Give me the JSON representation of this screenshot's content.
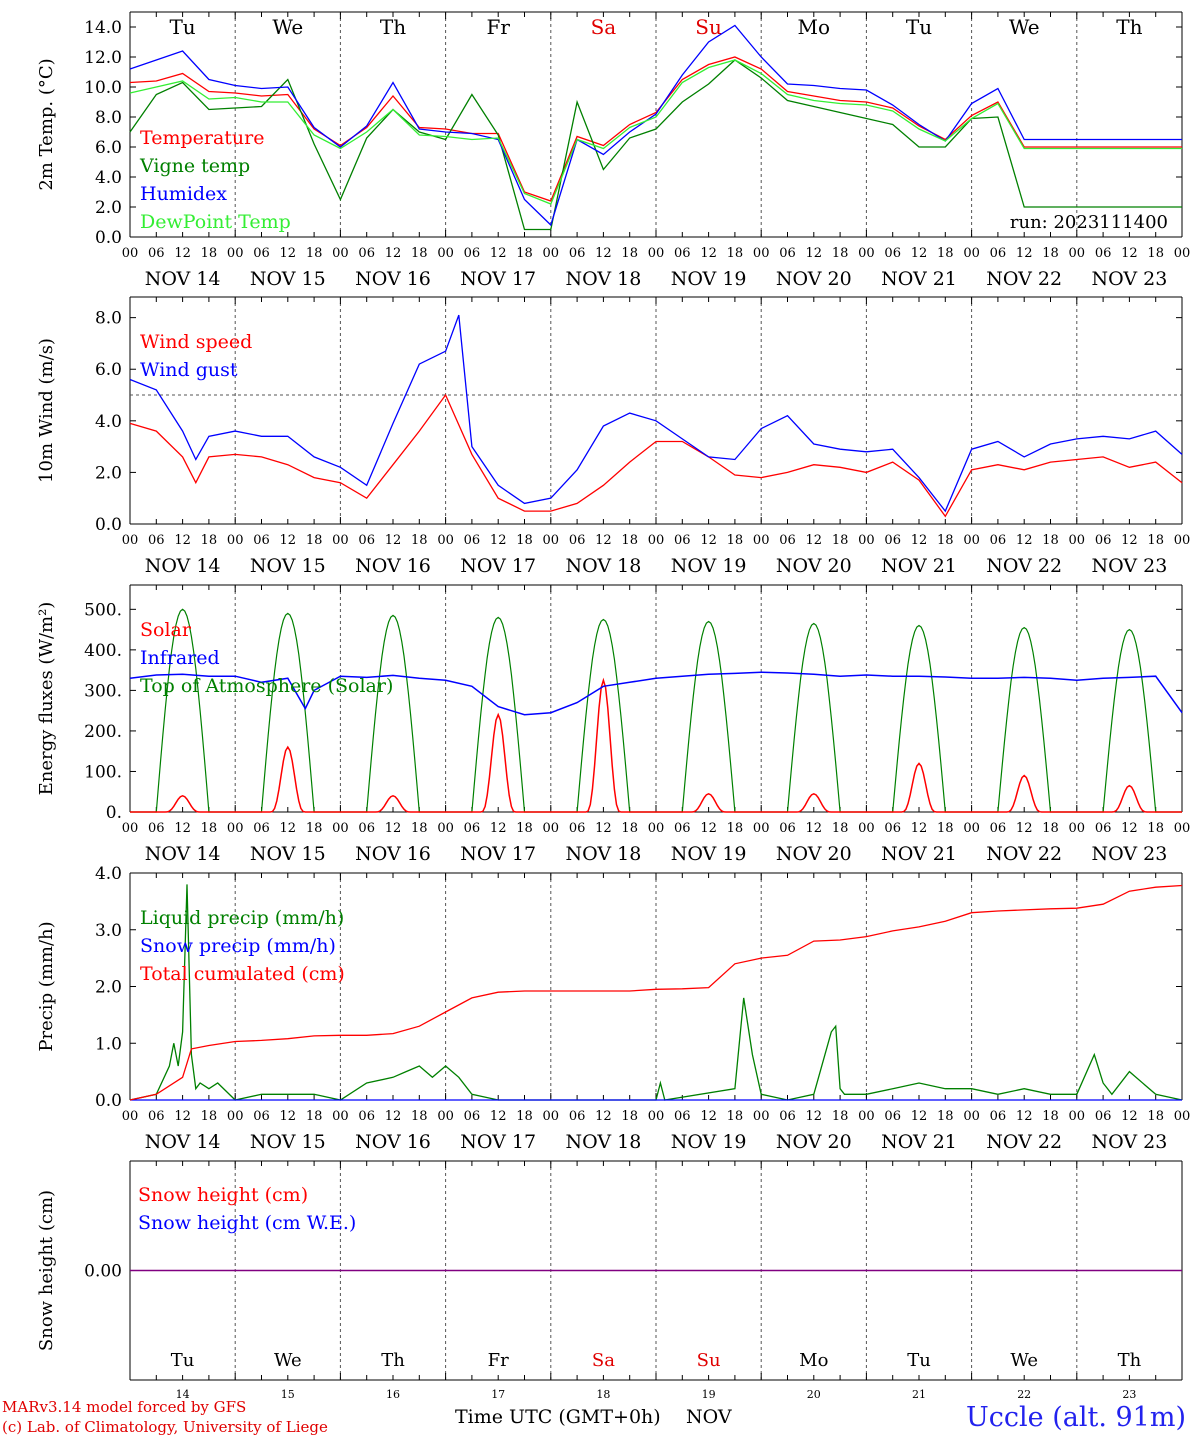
{
  "days": {
    "abbr": [
      "Tu",
      "We",
      "Th",
      "Fr",
      "Sa",
      "Su",
      "Mo",
      "Tu",
      "We",
      "Th"
    ],
    "weekend_color": "#e00000",
    "dates": [
      "NOV 14",
      "NOV 15",
      "NOV 16",
      "NOV 17",
      "NOV 18",
      "NOV 19",
      "NOV 20",
      "NOV 21",
      "NOV 22",
      "NOV 23"
    ],
    "day_numbers": [
      "14",
      "15",
      "16",
      "17",
      "18",
      "19",
      "20",
      "21",
      "22",
      "23"
    ],
    "hour_ticks": [
      "00",
      "06",
      "12",
      "18"
    ],
    "final_tick": "00"
  },
  "footer": {
    "credit_line1": "MARv3.14 model forced by GFS",
    "credit_line2": "(c) Lab. of Climatology, University of Liege",
    "xaxis_title": "Time UTC (GMT+0h)",
    "xaxis_month": "NOV",
    "location": "Uccle (alt. 91m)"
  },
  "chart_data": [
    {
      "type": "line",
      "ylabel": "2m Temp. (°C)",
      "ylim": [
        0,
        15
      ],
      "yticks": [
        "0.0",
        "2.0",
        "4.0",
        "6.0",
        "8.0",
        "10.0",
        "12.0",
        "14.0"
      ],
      "annotation": "run: 2023111400",
      "x_unit": "hours since NOV 14 00 UTC",
      "series": [
        {
          "name": "Temperature",
          "color": "#ff0000",
          "x": [
            0,
            6,
            12,
            18,
            24,
            30,
            36,
            42,
            48,
            54,
            60,
            66,
            72,
            78,
            84,
            90,
            96,
            102,
            108,
            114,
            120,
            126,
            132,
            138,
            144,
            150,
            156,
            162,
            168,
            174,
            180,
            186,
            192,
            198,
            204,
            210,
            216,
            222,
            228,
            234,
            240
          ],
          "values": [
            10.3,
            10.4,
            10.9,
            9.7,
            9.6,
            9.4,
            9.5,
            7.2,
            6.1,
            7.3,
            9.4,
            7.3,
            7.2,
            6.9,
            6.9,
            3.0,
            2.4,
            6.7,
            6.1,
            7.5,
            8.3,
            10.5,
            11.5,
            12.0,
            11.2,
            9.7,
            9.4,
            9.1,
            9.0,
            8.6,
            7.4,
            6.5,
            8.1,
            9.0,
            6.0,
            6.0,
            6.0,
            6.0,
            6.0,
            6.0,
            6.0
          ]
        },
        {
          "name": "Vigne temp",
          "color": "#008000",
          "x": [
            0,
            6,
            12,
            18,
            24,
            30,
            36,
            42,
            48,
            54,
            60,
            66,
            72,
            78,
            84,
            90,
            96,
            102,
            108,
            114,
            120,
            126,
            132,
            138,
            144,
            150,
            156,
            162,
            168,
            174,
            180,
            186,
            192,
            198,
            204,
            210,
            216,
            222,
            228,
            234,
            240
          ],
          "values": [
            7.0,
            9.5,
            10.3,
            8.5,
            8.6,
            8.7,
            10.5,
            6.2,
            2.5,
            6.6,
            8.5,
            7.0,
            6.5,
            9.5,
            6.8,
            0.5,
            0.5,
            9.0,
            4.5,
            6.6,
            7.2,
            9.0,
            10.2,
            11.8,
            10.6,
            9.1,
            8.7,
            8.3,
            7.9,
            7.5,
            6.0,
            6.0,
            7.9,
            8.0,
            2.0,
            2.0,
            2.0,
            2.0,
            2.0,
            2.0,
            2.0
          ]
        },
        {
          "name": "Humidex",
          "color": "#0000ff",
          "x": [
            0,
            6,
            12,
            18,
            24,
            30,
            36,
            42,
            48,
            54,
            60,
            66,
            72,
            78,
            84,
            90,
            96,
            102,
            108,
            114,
            120,
            126,
            132,
            138,
            144,
            150,
            156,
            162,
            168,
            174,
            180,
            186,
            192,
            198,
            204,
            210,
            216,
            222,
            228,
            234,
            240
          ],
          "values": [
            11.2,
            11.8,
            12.4,
            10.5,
            10.1,
            9.9,
            10.0,
            7.3,
            6.0,
            7.4,
            10.3,
            7.2,
            7.0,
            6.9,
            6.5,
            2.5,
            0.8,
            6.5,
            5.5,
            7.0,
            8.2,
            10.8,
            13.0,
            14.1,
            12.0,
            10.2,
            10.1,
            9.9,
            9.8,
            8.8,
            7.5,
            6.4,
            8.9,
            9.9,
            6.5,
            6.5,
            6.5,
            6.5,
            6.5,
            6.5,
            6.5
          ]
        },
        {
          "name": "DewPoint Temp",
          "color": "#33ee33",
          "x": [
            0,
            6,
            12,
            18,
            24,
            30,
            36,
            42,
            48,
            54,
            60,
            66,
            72,
            78,
            84,
            90,
            96,
            102,
            108,
            114,
            120,
            126,
            132,
            138,
            144,
            150,
            156,
            162,
            168,
            174,
            180,
            186,
            192,
            198,
            204,
            210,
            216,
            222,
            228,
            234,
            240
          ],
          "values": [
            9.6,
            10.0,
            10.4,
            9.2,
            9.3,
            9.0,
            9.0,
            6.8,
            5.9,
            7.0,
            8.5,
            6.8,
            6.7,
            6.5,
            6.6,
            2.9,
            2.2,
            6.5,
            5.9,
            7.3,
            8.0,
            10.3,
            11.3,
            11.8,
            10.9,
            9.5,
            9.1,
            8.9,
            8.8,
            8.4,
            7.2,
            6.4,
            7.9,
            8.9,
            5.9,
            5.9,
            5.9,
            5.9,
            5.9,
            5.9,
            5.9
          ]
        }
      ]
    },
    {
      "type": "line",
      "ylabel": "10m Wind (m/s)",
      "ylim": [
        0,
        8.8
      ],
      "yticks": [
        "0.0",
        "2.0",
        "4.0",
        "6.0",
        "8.0"
      ],
      "reference_line": 5.0,
      "x_unit": "hours since NOV 14 00 UTC",
      "series": [
        {
          "name": "Wind speed",
          "color": "#ff0000",
          "x": [
            0,
            6,
            12,
            15,
            18,
            24,
            30,
            36,
            42,
            48,
            54,
            60,
            66,
            72,
            78,
            84,
            90,
            96,
            102,
            108,
            114,
            120,
            126,
            132,
            138,
            144,
            150,
            156,
            162,
            168,
            174,
            180,
            186,
            192,
            198,
            204,
            210,
            216,
            222,
            228,
            234,
            240
          ],
          "values": [
            3.9,
            3.6,
            2.6,
            1.6,
            2.6,
            2.7,
            2.6,
            2.3,
            1.8,
            1.6,
            1.0,
            2.3,
            3.6,
            5.0,
            2.7,
            1.0,
            0.5,
            0.5,
            0.8,
            1.5,
            2.4,
            3.2,
            3.2,
            2.6,
            1.9,
            1.8,
            2.0,
            2.3,
            2.2,
            2.0,
            2.4,
            1.7,
            0.3,
            2.1,
            2.3,
            2.1,
            2.4,
            2.5,
            2.6,
            2.2,
            2.4,
            1.6
          ]
        },
        {
          "name": "Wind gust",
          "color": "#0000ff",
          "x": [
            0,
            6,
            12,
            15,
            18,
            24,
            30,
            36,
            42,
            48,
            54,
            60,
            66,
            72,
            75,
            78,
            84,
            90,
            96,
            102,
            108,
            114,
            120,
            126,
            132,
            138,
            144,
            150,
            156,
            162,
            168,
            174,
            180,
            186,
            192,
            198,
            204,
            210,
            216,
            222,
            228,
            234,
            240
          ],
          "values": [
            5.6,
            5.2,
            3.6,
            2.5,
            3.4,
            3.6,
            3.4,
            3.4,
            2.6,
            2.2,
            1.5,
            3.9,
            6.2,
            6.7,
            8.1,
            3.0,
            1.5,
            0.8,
            1.0,
            2.1,
            3.8,
            4.3,
            4.0,
            3.3,
            2.6,
            2.5,
            3.7,
            4.2,
            3.1,
            2.9,
            2.8,
            2.9,
            1.8,
            0.5,
            2.9,
            3.2,
            2.6,
            3.1,
            3.3,
            3.4,
            3.3,
            3.6,
            2.7
          ]
        }
      ]
    },
    {
      "type": "line",
      "ylabel": "Energy fluxes (W/m²)",
      "ylim": [
        0,
        560
      ],
      "yticks": [
        "0.",
        "100.",
        "200.",
        "300.",
        "400.",
        "500."
      ],
      "x_unit": "hours since NOV 14 00 UTC",
      "series": [
        {
          "name": "Solar",
          "color": "#ff0000",
          "day_peaks": [
            40,
            160,
            40,
            240,
            325,
            45,
            45,
            120,
            90,
            65
          ]
        },
        {
          "name": "Infrared",
          "color": "#0000ff",
          "x": [
            0,
            6,
            12,
            18,
            24,
            30,
            36,
            40,
            42,
            48,
            54,
            60,
            66,
            72,
            78,
            84,
            90,
            96,
            102,
            108,
            114,
            120,
            126,
            132,
            138,
            144,
            150,
            156,
            162,
            168,
            174,
            180,
            186,
            192,
            198,
            204,
            210,
            216,
            222,
            228,
            234,
            240
          ],
          "values": [
            330,
            338,
            340,
            335,
            335,
            320,
            330,
            255,
            300,
            335,
            332,
            337,
            330,
            325,
            310,
            260,
            240,
            245,
            270,
            310,
            320,
            330,
            335,
            340,
            342,
            345,
            343,
            340,
            335,
            338,
            335,
            335,
            333,
            330,
            330,
            332,
            330,
            325,
            330,
            332,
            335,
            245
          ]
        },
        {
          "name": "Top of Atmosphere (Solar)",
          "color": "#008000",
          "day_peaks": [
            500,
            490,
            485,
            480,
            475,
            470,
            465,
            460,
            455,
            450
          ]
        }
      ]
    },
    {
      "type": "line",
      "ylabel": "Precip (mm/h)",
      "ylim": [
        0,
        4.0
      ],
      "yticks": [
        "0.0",
        "1.0",
        "2.0",
        "3.0",
        "4.0"
      ],
      "x_unit": "hours since NOV 14 00 UTC",
      "series": [
        {
          "name": "Liquid precip (mm/h)",
          "color": "#008000",
          "x": [
            0,
            6,
            9,
            10,
            11,
            12,
            13,
            14,
            15,
            16,
            18,
            20,
            24,
            30,
            36,
            42,
            48,
            54,
            60,
            63,
            66,
            69,
            72,
            75,
            78,
            84,
            90,
            96,
            120,
            121,
            122,
            138,
            140,
            142,
            144,
            150,
            156,
            160,
            161,
            162,
            163,
            168,
            174,
            180,
            186,
            192,
            198,
            204,
            210,
            216,
            220,
            222,
            224,
            228,
            234,
            240
          ],
          "values": [
            0,
            0.1,
            0.6,
            1.0,
            0.6,
            1.2,
            3.8,
            0.8,
            0.2,
            0.3,
            0.2,
            0.3,
            0,
            0.1,
            0.1,
            0.1,
            0,
            0.3,
            0.4,
            0.5,
            0.6,
            0.4,
            0.6,
            0.4,
            0.1,
            0,
            0,
            0,
            0,
            0.3,
            0,
            0.2,
            1.8,
            0.8,
            0.1,
            0,
            0.1,
            1.2,
            1.3,
            0.2,
            0.1,
            0.1,
            0.2,
            0.3,
            0.2,
            0.2,
            0.1,
            0.2,
            0.1,
            0.1,
            0.8,
            0.3,
            0.1,
            0.5,
            0.1,
            0
          ]
        },
        {
          "name": "Snow precip (mm/h)",
          "color": "#0000ff",
          "x": [
            0,
            240
          ],
          "values": [
            0,
            0
          ]
        },
        {
          "name": "Total cumulated (cm)",
          "color": "#ff0000",
          "x": [
            0,
            6,
            12,
            14,
            18,
            24,
            30,
            36,
            42,
            48,
            54,
            60,
            66,
            72,
            78,
            84,
            90,
            96,
            102,
            108,
            114,
            120,
            126,
            132,
            138,
            144,
            150,
            156,
            162,
            168,
            174,
            180,
            186,
            192,
            198,
            204,
            210,
            216,
            222,
            228,
            234,
            240
          ],
          "values": [
            0,
            0.1,
            0.4,
            0.9,
            0.96,
            1.03,
            1.05,
            1.08,
            1.13,
            1.14,
            1.14,
            1.17,
            1.3,
            1.55,
            1.8,
            1.9,
            1.92,
            1.92,
            1.92,
            1.92,
            1.92,
            1.95,
            1.96,
            1.98,
            2.4,
            2.5,
            2.55,
            2.8,
            2.82,
            2.88,
            2.98,
            3.05,
            3.15,
            3.3,
            3.33,
            3.35,
            3.37,
            3.38,
            3.45,
            3.68,
            3.75,
            3.78
          ]
        }
      ]
    },
    {
      "type": "line",
      "ylabel": "Snow height (cm)",
      "yticks": [
        "0.00"
      ],
      "x_unit": "hours since NOV 14 00 UTC",
      "series": [
        {
          "name": "Snow height (cm)",
          "color": "#ff0000",
          "x": [
            0,
            240
          ],
          "values": [
            0,
            0
          ]
        },
        {
          "name": "Snow height (cm W.E.)",
          "color": "#0000ff",
          "x": [
            0,
            240
          ],
          "values": [
            0,
            0
          ]
        }
      ]
    }
  ]
}
